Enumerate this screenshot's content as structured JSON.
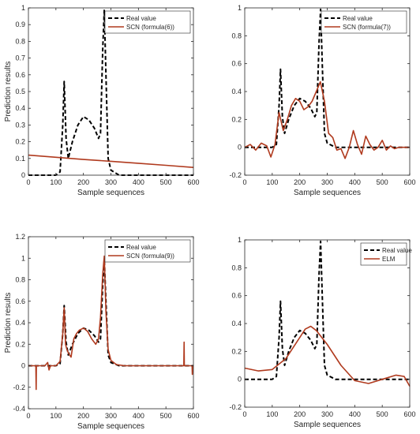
{
  "chart_data": [
    {
      "type": "line",
      "xlabel": "Sample sequences",
      "ylabel": "Prediction results",
      "xlim": [
        0,
        600
      ],
      "ylim": [
        0,
        1
      ],
      "xticks": [
        0,
        100,
        200,
        300,
        400,
        500,
        600
      ],
      "yticks": [
        0,
        0.1,
        0.2,
        0.3,
        0.4,
        0.5,
        0.6,
        0.7,
        0.8,
        0.9,
        1
      ],
      "ytick_labels": [
        "0",
        "0.1",
        "0.2",
        "0.3",
        "0.4",
        "0.5",
        "0.6",
        "0.7",
        "0.8",
        "0.9",
        "1"
      ],
      "legend_position": "top-right",
      "series": [
        {
          "name": "Real value",
          "color": "#000000",
          "dash": "dashed",
          "x": [
            0,
            100,
            115,
            125,
            130,
            137,
            145,
            160,
            180,
            200,
            220,
            240,
            255,
            262,
            270,
            276,
            282,
            290,
            300,
            330,
            600
          ],
          "y": [
            0,
            0,
            0.02,
            0.3,
            0.56,
            0.22,
            0.1,
            0.2,
            0.3,
            0.35,
            0.33,
            0.28,
            0.22,
            0.25,
            0.75,
            0.99,
            0.6,
            0.1,
            0.03,
            0,
            0
          ]
        },
        {
          "name": "SCN (formula(6))",
          "color": "#b03a1e",
          "dash": "solid",
          "x": [
            0,
            100,
            200,
            300,
            400,
            500,
            600
          ],
          "y": [
            0.12,
            0.107,
            0.094,
            0.083,
            0.071,
            0.059,
            0.046
          ]
        }
      ]
    },
    {
      "type": "line",
      "xlabel": "Sample sequences",
      "ylabel": "",
      "xlim": [
        0,
        600
      ],
      "ylim": [
        -0.2,
        1
      ],
      "xticks": [
        0,
        100,
        200,
        300,
        400,
        500,
        600
      ],
      "yticks": [
        -0.2,
        0,
        0.2,
        0.4,
        0.6,
        0.8,
        1
      ],
      "ytick_labels": [
        "-0.2",
        "0",
        "0.2",
        "0.4",
        "0.6",
        "0.8",
        "1"
      ],
      "legend_position": "top-right",
      "series": [
        {
          "name": "Real value",
          "color": "#000000",
          "dash": "dashed",
          "x": [
            0,
            100,
            115,
            125,
            130,
            137,
            145,
            160,
            180,
            200,
            220,
            240,
            255,
            262,
            270,
            276,
            282,
            290,
            300,
            330,
            600
          ],
          "y": [
            0,
            0,
            0.02,
            0.3,
            0.56,
            0.22,
            0.1,
            0.2,
            0.3,
            0.35,
            0.33,
            0.28,
            0.22,
            0.25,
            0.75,
            0.99,
            0.6,
            0.1,
            0.03,
            0,
            0
          ]
        },
        {
          "name": "SCN (formula(7))",
          "color": "#b03a1e",
          "dash": "solid",
          "x": [
            0,
            20,
            40,
            60,
            80,
            95,
            110,
            125,
            140,
            155,
            170,
            185,
            200,
            215,
            230,
            245,
            260,
            275,
            290,
            305,
            320,
            335,
            350,
            365,
            380,
            395,
            410,
            425,
            440,
            455,
            470,
            485,
            500,
            515,
            530,
            545,
            560,
            580,
            600
          ],
          "y": [
            0,
            0.02,
            -0.02,
            0.03,
            0.01,
            -0.07,
            0.02,
            0.25,
            0.12,
            0.2,
            0.3,
            0.35,
            0.33,
            0.27,
            0.29,
            0.33,
            0.4,
            0.47,
            0.33,
            0.1,
            0.07,
            -0.02,
            -0.01,
            -0.08,
            0,
            0.12,
            0.02,
            -0.05,
            0.08,
            0.02,
            -0.02,
            0,
            0.05,
            -0.02,
            0.01,
            -0.01,
            0,
            0,
            0
          ]
        }
      ]
    },
    {
      "type": "line",
      "xlabel": "Sample sequences",
      "ylabel": "Prediction results",
      "xlim": [
        0,
        600
      ],
      "ylim": [
        -0.4,
        1.2
      ],
      "xticks": [
        0,
        100,
        200,
        300,
        400,
        500,
        600
      ],
      "yticks": [
        -0.4,
        -0.2,
        0,
        0.2,
        0.4,
        0.6,
        0.8,
        1,
        1.2
      ],
      "ytick_labels": [
        "-0.4",
        "-0.2",
        "0",
        "0.2",
        "0.4",
        "0.6",
        "0.8",
        "1",
        "1.2"
      ],
      "legend_position": "top-right",
      "series": [
        {
          "name": "Real value",
          "color": "#000000",
          "dash": "dashed",
          "x": [
            0,
            100,
            115,
            125,
            130,
            137,
            145,
            160,
            180,
            200,
            220,
            240,
            255,
            262,
            270,
            276,
            282,
            290,
            300,
            330,
            600
          ],
          "y": [
            0,
            0,
            0.02,
            0.3,
            0.56,
            0.22,
            0.1,
            0.2,
            0.3,
            0.35,
            0.33,
            0.28,
            0.22,
            0.25,
            0.75,
            0.99,
            0.6,
            0.1,
            0.03,
            0,
            0
          ]
        },
        {
          "name": "SCN (formula(9))",
          "color": "#b03a1e",
          "dash": "solid",
          "x": [
            0,
            27,
            28,
            29,
            30,
            60,
            70,
            75,
            80,
            100,
            115,
            125,
            130,
            135,
            140,
            145,
            155,
            165,
            175,
            185,
            200,
            215,
            230,
            245,
            255,
            262,
            270,
            276,
            282,
            290,
            300,
            320,
            350,
            400,
            450,
            500,
            560,
            565,
            566,
            567,
            570,
            595,
            596,
            597,
            600
          ],
          "y": [
            0,
            0,
            -0.22,
            0,
            0,
            0,
            0.03,
            -0.04,
            0,
            0,
            0.04,
            0.3,
            0.54,
            0.2,
            0.15,
            0.12,
            0.08,
            0.25,
            0.3,
            0.33,
            0.35,
            0.32,
            0.25,
            0.2,
            0.25,
            0.45,
            0.85,
            1.02,
            0.5,
            0.15,
            0.05,
            0.01,
            0,
            0,
            0,
            0,
            0,
            0,
            0.22,
            0,
            0,
            0,
            -0.08,
            0,
            0
          ]
        }
      ]
    },
    {
      "type": "line",
      "xlabel": "Sample sequences",
      "ylabel": "",
      "xlim": [
        0,
        600
      ],
      "ylim": [
        -0.2,
        1
      ],
      "xticks": [
        0,
        100,
        200,
        300,
        400,
        500,
        600
      ],
      "yticks": [
        -0.2,
        0,
        0.2,
        0.4,
        0.6,
        0.8,
        1
      ],
      "ytick_labels": [
        "-0.2",
        "0",
        "0.2",
        "0.4",
        "0.6",
        "0.8",
        "1"
      ],
      "legend_position": "top-right",
      "series": [
        {
          "name": "Real value",
          "color": "#000000",
          "dash": "dashed",
          "x": [
            0,
            100,
            115,
            125,
            130,
            137,
            145,
            160,
            180,
            200,
            220,
            240,
            255,
            262,
            270,
            276,
            282,
            290,
            300,
            330,
            600
          ],
          "y": [
            0,
            0,
            0.02,
            0.3,
            0.56,
            0.22,
            0.1,
            0.2,
            0.3,
            0.35,
            0.33,
            0.28,
            0.22,
            0.25,
            0.75,
            0.99,
            0.6,
            0.1,
            0.03,
            0,
            0
          ]
        },
        {
          "name": "ELM",
          "color": "#b03a1e",
          "dash": "solid",
          "x": [
            0,
            50,
            100,
            150,
            200,
            220,
            240,
            260,
            300,
            350,
            400,
            450,
            500,
            550,
            580,
            600
          ],
          "y": [
            0.08,
            0.06,
            0.07,
            0.15,
            0.3,
            0.36,
            0.38,
            0.35,
            0.25,
            0.1,
            -0.01,
            -0.03,
            0,
            0.03,
            0.02,
            -0.05
          ]
        }
      ]
    }
  ]
}
